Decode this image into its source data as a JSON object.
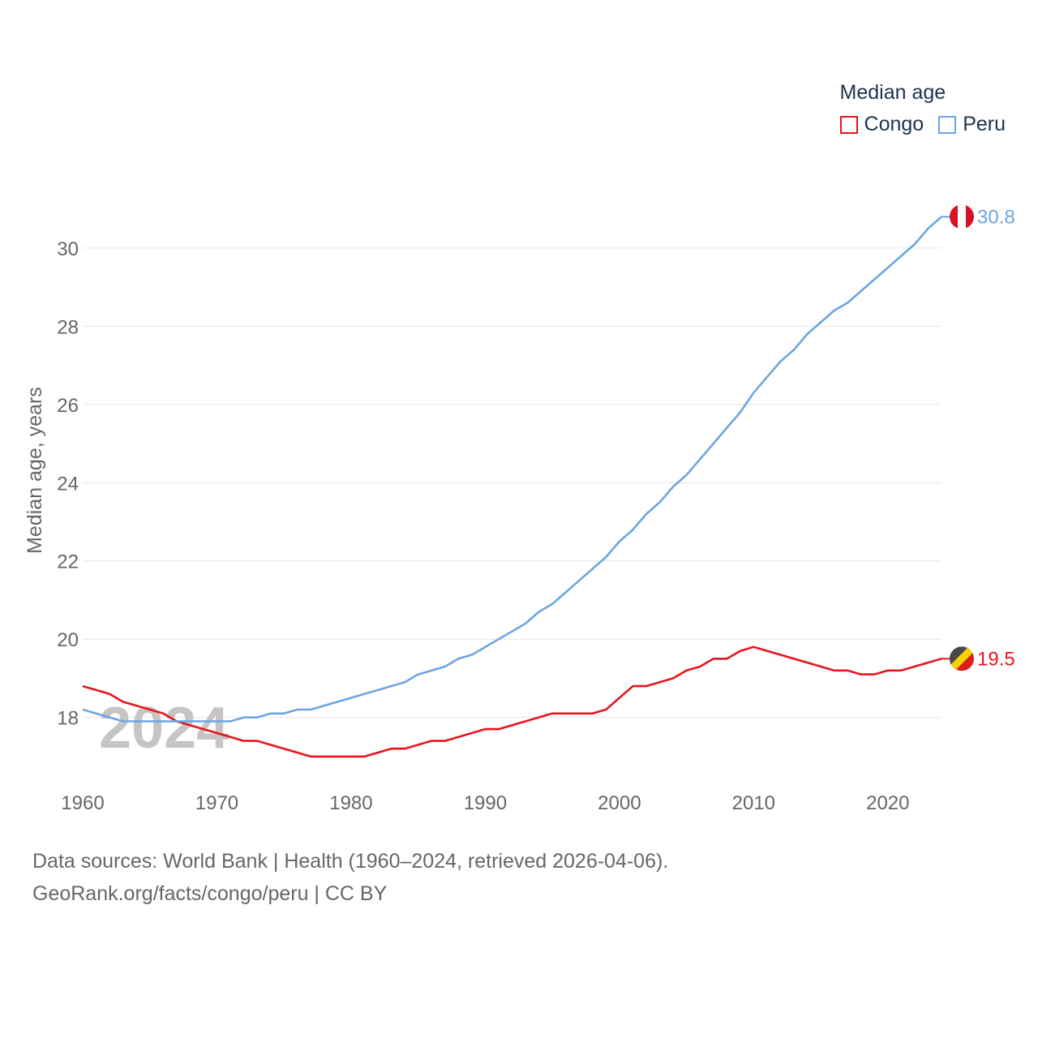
{
  "chart_data": {
    "type": "line",
    "title": "Median age",
    "ylabel": "Median age, years",
    "xlabel": "",
    "year_label": "2024",
    "xlim": [
      1960,
      2024
    ],
    "ylim": [
      16.5,
      31.2
    ],
    "x_ticks": [
      1960,
      1970,
      1980,
      1990,
      2000,
      2010,
      2020
    ],
    "y_ticks": [
      18,
      20,
      22,
      24,
      26,
      28,
      30
    ],
    "series": [
      {
        "name": "Congo",
        "color": "#e8141c",
        "end_label": "19.5",
        "flag": "congo-flag",
        "points": [
          [
            1960,
            18.8
          ],
          [
            1962,
            18.6
          ],
          [
            1963,
            18.4
          ],
          [
            1966,
            18.1
          ],
          [
            1967,
            17.9
          ],
          [
            1972,
            17.4
          ],
          [
            1973,
            17.4
          ],
          [
            1977,
            17.0
          ],
          [
            1981,
            17.0
          ],
          [
            1983,
            17.2
          ],
          [
            1984,
            17.2
          ],
          [
            1986,
            17.4
          ],
          [
            1987,
            17.4
          ],
          [
            1990,
            17.7
          ],
          [
            1991,
            17.7
          ],
          [
            1995,
            18.1
          ],
          [
            1998,
            18.1
          ],
          [
            1999,
            18.2
          ],
          [
            2001,
            18.8
          ],
          [
            2002,
            18.8
          ],
          [
            2004,
            19.0
          ],
          [
            2005,
            19.2
          ],
          [
            2006,
            19.3
          ],
          [
            2007,
            19.5
          ],
          [
            2008,
            19.5
          ],
          [
            2009,
            19.7
          ],
          [
            2010,
            19.8
          ],
          [
            2016,
            19.2
          ],
          [
            2017,
            19.2
          ],
          [
            2018,
            19.1
          ],
          [
            2019,
            19.1
          ],
          [
            2020,
            19.2
          ],
          [
            2021,
            19.2
          ],
          [
            2024,
            19.5
          ]
        ]
      },
      {
        "name": "Peru",
        "color": "#6ba6e0",
        "end_label": "30.8",
        "flag": "peru-flag",
        "points": [
          [
            1960,
            18.2
          ],
          [
            1963,
            17.9
          ],
          [
            1971,
            17.9
          ],
          [
            1972,
            18.0
          ],
          [
            1973,
            18.0
          ],
          [
            1974,
            18.1
          ],
          [
            1975,
            18.1
          ],
          [
            1976,
            18.2
          ],
          [
            1977,
            18.2
          ],
          [
            1984,
            18.9
          ],
          [
            1985,
            19.1
          ],
          [
            1987,
            19.3
          ],
          [
            1988,
            19.5
          ],
          [
            1989,
            19.6
          ],
          [
            1993,
            20.4
          ],
          [
            1994,
            20.7
          ],
          [
            1995,
            20.9
          ],
          [
            1999,
            22.1
          ],
          [
            2000,
            22.5
          ],
          [
            2001,
            22.8
          ],
          [
            2002,
            23.2
          ],
          [
            2003,
            23.5
          ],
          [
            2004,
            23.9
          ],
          [
            2005,
            24.2
          ],
          [
            2006,
            24.6
          ],
          [
            2009,
            25.8
          ],
          [
            2010,
            26.3
          ],
          [
            2012,
            27.1
          ],
          [
            2013,
            27.4
          ],
          [
            2014,
            27.8
          ],
          [
            2016,
            28.4
          ],
          [
            2017,
            28.6
          ],
          [
            2022,
            30.1
          ],
          [
            2023,
            30.5
          ],
          [
            2024,
            30.8
          ]
        ]
      }
    ]
  },
  "legend": {
    "title": "Median age",
    "items": [
      {
        "label": "Congo",
        "color": "#e8141c"
      },
      {
        "label": "Peru",
        "color": "#6ba6e0"
      }
    ]
  },
  "source": {
    "line1": "Data sources: World Bank | Health (1960–2024, retrieved 2026-04-06).",
    "line2": "GeoRank.org/facts/congo/peru | CC BY"
  }
}
